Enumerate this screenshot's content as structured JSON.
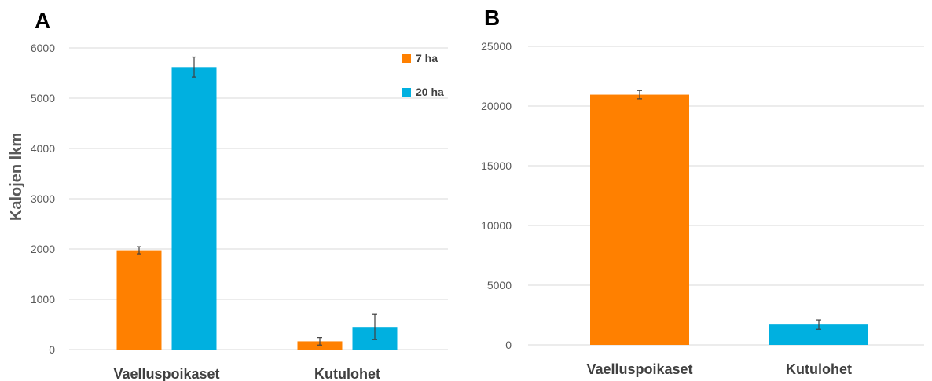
{
  "chart_data": [
    {
      "type": "bar",
      "panel_label": "A",
      "ylabel": "Kalojen lkm",
      "ylim": [
        0,
        6000
      ],
      "yticks": [
        0,
        1000,
        2000,
        3000,
        4000,
        5000,
        6000
      ],
      "grid": true,
      "legend": "top-right",
      "categories": [
        "Vaelluspoikaset",
        "Kutulohet"
      ],
      "series": [
        {
          "name": "7 ha",
          "color": "#ff8000",
          "values": [
            1975,
            165
          ],
          "errors": [
            70,
            75
          ]
        },
        {
          "name": "20 ha",
          "color": "#00b0e0",
          "values": [
            5620,
            450
          ],
          "errors": [
            200,
            250
          ]
        }
      ]
    },
    {
      "type": "bar",
      "panel_label": "B",
      "ylim": [
        0,
        25000
      ],
      "yticks": [
        0,
        5000,
        10000,
        15000,
        20000,
        25000
      ],
      "grid": true,
      "categories": [
        "Vaelluspoikaset",
        "Kutulohet"
      ],
      "colors": [
        "#ff8000",
        "#00b0e0"
      ],
      "values": [
        20950,
        1700
      ],
      "errors": [
        350,
        400
      ]
    }
  ]
}
